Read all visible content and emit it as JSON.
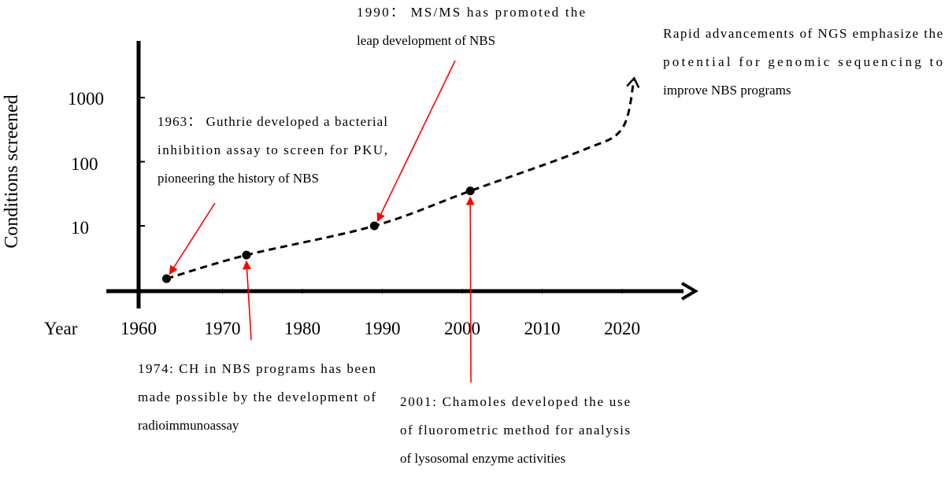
{
  "chart_data": {
    "type": "line",
    "title": "",
    "xlabel": "Year",
    "ylabel": "Conditions screened",
    "y_scale": "log",
    "x_ticks": [
      1960,
      1970,
      1980,
      1990,
      2000,
      2010,
      2020
    ],
    "y_ticks": [
      "10",
      "100",
      "1000"
    ],
    "xlim": [
      1960,
      2025
    ],
    "grid": false,
    "series": [
      {
        "line_style": "dashed",
        "color": "#000000",
        "points": [
          {
            "x": 1963,
            "y": 1.5
          },
          {
            "x": 1973,
            "y": 3.5
          },
          {
            "x": 1989,
            "y": 10
          },
          {
            "x": 2001,
            "y": 35
          },
          {
            "x": 2015,
            "y": 150
          },
          {
            "x": 2020,
            "y": 330
          },
          {
            "x": 2021.5,
            "y": 2000
          }
        ],
        "markers": [
          {
            "x": 1963,
            "y": 1.5
          },
          {
            "x": 1973,
            "y": 3.5
          },
          {
            "x": 1989,
            "y": 10
          },
          {
            "x": 2001,
            "y": 35
          }
        ]
      }
    ],
    "annotations": [
      {
        "target_x": 1963,
        "lines": [
          "1963： Guthrie developed a bacterial",
          "inhibition assay to screen for PKU,",
          "pioneering the history of NBS"
        ]
      },
      {
        "target_x": 1973,
        "lines": [
          "1974: CH in NBS programs has been",
          "made possible by the development of",
          "radioimmunoassay"
        ]
      },
      {
        "target_x": 1989,
        "lines": [
          "1990： MS/MS has promoted the",
          "leap development of NBS"
        ]
      },
      {
        "target_x": 2001,
        "lines": [
          "2001: Chamoles developed the use",
          "of fluorometric method for analysis",
          "of lysosomal enzyme activities"
        ]
      },
      {
        "target_x": 2021.5,
        "lines": [
          "Rapid advancements of NGS emphasize the",
          "potential for genomic sequencing to",
          "improve NBS programs"
        ]
      }
    ],
    "arrow_color": "#ff0000"
  }
}
